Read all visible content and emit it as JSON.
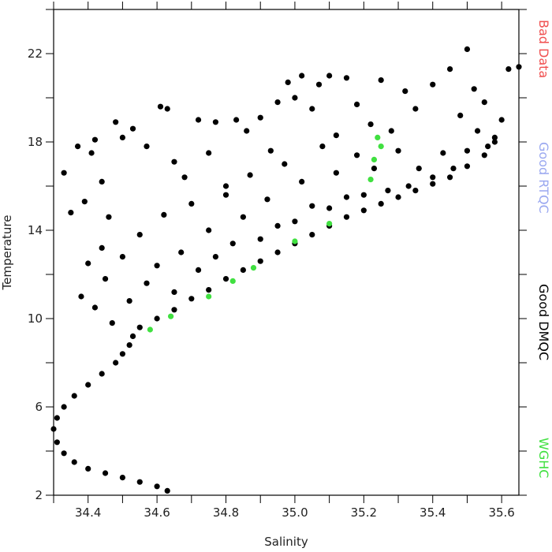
{
  "chart_data": {
    "type": "scatter",
    "x_label": "Salinity",
    "y_label": "Temperature",
    "xlim": [
      34.3,
      35.65
    ],
    "ylim": [
      2,
      24
    ],
    "xticks": [
      34.4,
      {
        "value": 34.6,
        "label": "34.6"
      },
      34.8,
      {
        "value": 35.0,
        "label": "35.0"
      },
      35.2,
      35.4,
      35.6
    ],
    "xticks_minor": [
      34.3,
      34.5,
      34.7,
      34.9,
      35.1,
      35.3,
      35.5
    ],
    "yticks": [
      2,
      6,
      10,
      14,
      18,
      22
    ],
    "yticks_minor": [
      4,
      8,
      12,
      16,
      20,
      24
    ],
    "legend": "right",
    "series": [
      {
        "name": "Bad Data",
        "color": "#f05050",
        "x": [],
        "y": []
      },
      {
        "name": "Good RTQC",
        "color": "#9aa8f0",
        "x": [],
        "y": []
      },
      {
        "name": "Good DMQC",
        "color": "#000000",
        "x": [
          34.63,
          34.6,
          34.55,
          34.5,
          34.45,
          34.4,
          34.36,
          34.33,
          34.31,
          34.3,
          34.31,
          34.33,
          34.36,
          34.4,
          34.44,
          34.48,
          34.5,
          34.52,
          34.53,
          34.33,
          34.35,
          34.37,
          34.39,
          34.41,
          34.42,
          34.44,
          34.46,
          34.48,
          34.5,
          34.53,
          34.57,
          34.61,
          34.63,
          34.65,
          34.68,
          34.72,
          34.75,
          34.77,
          34.8,
          34.83,
          34.86,
          34.9,
          34.93,
          34.95,
          34.98,
          35.0,
          35.02,
          35.05,
          35.07,
          35.1,
          35.12,
          35.15,
          35.18,
          35.22,
          35.25,
          35.28,
          35.32,
          35.35,
          35.4,
          35.45,
          35.5,
          35.52,
          35.55,
          35.62,
          35.65,
          35.48,
          35.58,
          34.38,
          34.4,
          34.42,
          34.44,
          34.45,
          34.47,
          34.5,
          34.52,
          34.55,
          34.57,
          34.6,
          34.62,
          34.65,
          34.67,
          34.7,
          34.72,
          34.75,
          34.77,
          34.8,
          34.82,
          34.85,
          34.87,
          34.9,
          34.92,
          34.95,
          34.97,
          35.0,
          35.02,
          35.05,
          35.08,
          35.1,
          35.12,
          35.15,
          35.18,
          35.2,
          35.23,
          35.27,
          35.3,
          35.33,
          35.36,
          35.4,
          35.43,
          35.46,
          35.5,
          35.53,
          35.56,
          35.6,
          34.55,
          34.6,
          34.65,
          34.7,
          34.75,
          34.8,
          34.85,
          34.9,
          34.95,
          35.0,
          35.05,
          35.1,
          35.15,
          35.2,
          35.25,
          35.3,
          35.35,
          35.4,
          35.45,
          35.5,
          35.55,
          35.58
        ],
        "y": [
          2.2,
          2.4,
          2.6,
          2.8,
          3.0,
          3.2,
          3.5,
          3.9,
          4.4,
          5.0,
          5.5,
          6.0,
          6.5,
          7.0,
          7.5,
          8.0,
          8.4,
          8.8,
          9.2,
          16.6,
          14.8,
          17.8,
          15.3,
          17.5,
          18.1,
          16.2,
          14.6,
          18.9,
          18.2,
          18.6,
          17.8,
          19.6,
          19.5,
          17.1,
          16.4,
          19.0,
          17.5,
          18.9,
          16.0,
          19.0,
          18.5,
          19.1,
          17.6,
          19.8,
          20.7,
          20.0,
          21.0,
          19.5,
          20.6,
          21.0,
          18.3,
          20.9,
          19.7,
          18.8,
          20.8,
          18.5,
          20.3,
          19.5,
          20.6,
          21.3,
          22.2,
          20.4,
          19.8,
          21.3,
          21.4,
          19.2,
          18.2,
          11.0,
          12.5,
          10.5,
          13.2,
          11.8,
          9.8,
          12.8,
          10.8,
          13.8,
          11.6,
          12.4,
          14.7,
          11.2,
          13.0,
          15.2,
          12.2,
          14.0,
          12.8,
          15.6,
          13.4,
          14.6,
          16.5,
          13.6,
          15.4,
          14.2,
          17.0,
          14.4,
          16.2,
          15.1,
          17.8,
          15.0,
          16.6,
          15.5,
          17.4,
          15.6,
          16.8,
          15.8,
          17.6,
          16.0,
          16.8,
          16.4,
          17.5,
          16.8,
          17.6,
          18.5,
          17.8,
          19.0,
          9.6,
          10.0,
          10.4,
          10.9,
          11.3,
          11.8,
          12.2,
          12.6,
          13.0,
          13.4,
          13.8,
          14.2,
          14.6,
          14.9,
          15.2,
          15.5,
          15.8,
          16.1,
          16.4,
          16.9,
          17.4,
          18.0
        ]
      },
      {
        "name": "WGHC",
        "color": "#40e040",
        "x": [
          34.58,
          34.64,
          34.75,
          34.82,
          34.88,
          35.0,
          35.1,
          35.22,
          35.23,
          35.24,
          35.25
        ],
        "y": [
          9.5,
          10.1,
          11.0,
          11.7,
          12.3,
          13.5,
          14.3,
          16.3,
          17.2,
          18.2,
          17.8
        ]
      }
    ]
  }
}
